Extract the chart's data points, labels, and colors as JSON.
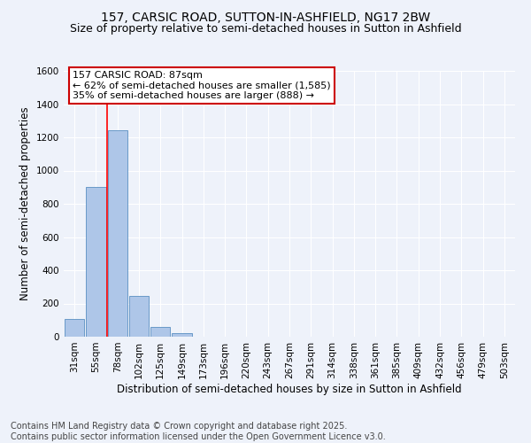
{
  "title1": "157, CARSIC ROAD, SUTTON-IN-ASHFIELD, NG17 2BW",
  "title2": "Size of property relative to semi-detached houses in Sutton in Ashfield",
  "xlabel": "Distribution of semi-detached houses by size in Sutton in Ashfield",
  "ylabel": "Number of semi-detached properties",
  "categories": [
    "31sqm",
    "55sqm",
    "78sqm",
    "102sqm",
    "125sqm",
    "149sqm",
    "173sqm",
    "196sqm",
    "220sqm",
    "243sqm",
    "267sqm",
    "291sqm",
    "314sqm",
    "338sqm",
    "361sqm",
    "385sqm",
    "409sqm",
    "432sqm",
    "456sqm",
    "479sqm",
    "503sqm"
  ],
  "values": [
    105,
    900,
    1245,
    245,
    57,
    20,
    0,
    0,
    0,
    0,
    0,
    0,
    0,
    0,
    0,
    0,
    0,
    0,
    0,
    0,
    0
  ],
  "bar_color": "#aec6e8",
  "bar_edge_color": "#5a8fc2",
  "red_line_x": 2,
  "annotation_title": "157 CARSIC ROAD: 87sqm",
  "annotation_line1": "← 62% of semi-detached houses are smaller (1,585)",
  "annotation_line2": "35% of semi-detached houses are larger (888) →",
  "annotation_box_color": "#ffffff",
  "annotation_box_edge": "#cc0000",
  "footer1": "Contains HM Land Registry data © Crown copyright and database right 2025.",
  "footer2": "Contains public sector information licensed under the Open Government Licence v3.0.",
  "ylim": [
    0,
    1600
  ],
  "yticks": [
    0,
    200,
    400,
    600,
    800,
    1000,
    1200,
    1400,
    1600
  ],
  "background_color": "#eef2fa",
  "grid_color": "#ffffff",
  "title_fontsize": 10,
  "subtitle_fontsize": 9,
  "axis_label_fontsize": 8.5,
  "tick_fontsize": 7.5,
  "annotation_fontsize": 8,
  "footer_fontsize": 7
}
